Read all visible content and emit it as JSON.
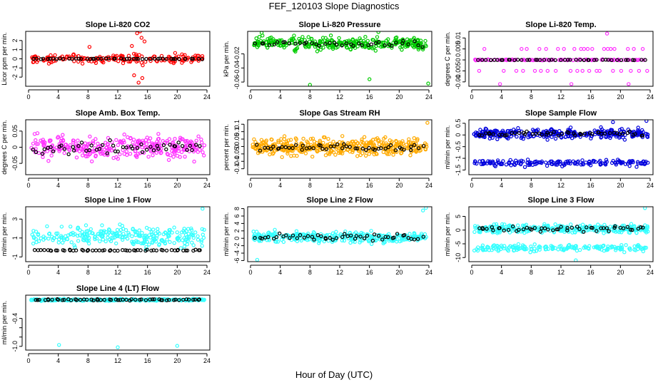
{
  "figure": {
    "title": "FEF_120103  Slope Diagnostics",
    "xlabel": "Hour of Day (UTC)",
    "colors": {
      "primary_marker": "#000000"
    }
  },
  "chart_data": [
    {
      "type": "scatter",
      "title": "Slope Li-820 CO2",
      "ylabel": "Licor ppm per min.",
      "xlim": [
        0,
        24
      ],
      "xticks": [
        0,
        4,
        8,
        12,
        16,
        20,
        24
      ],
      "ylim": [
        -3,
        3
      ],
      "yticks": [
        -2,
        -1,
        0,
        1,
        2
      ],
      "color": "#ff0000",
      "bands": [
        {
          "center": 0,
          "spread": 0.8,
          "n": 180
        }
      ],
      "black_band": {
        "center": 0,
        "spread": 0.08,
        "n": 50
      },
      "outliers": [
        [
          14.6,
          2.8
        ],
        [
          15.0,
          3.0
        ],
        [
          15.2,
          2.3
        ],
        [
          14.8,
          -2.6
        ],
        [
          15.3,
          -2.1
        ],
        [
          14.2,
          -1.8
        ],
        [
          13.9,
          1.4
        ],
        [
          15.6,
          1.9
        ],
        [
          8.2,
          1.3
        ]
      ]
    },
    {
      "type": "scatter",
      "title": "Slope Li-820 Pressure",
      "ylabel": "kPa per min.",
      "xlim": [
        0,
        24
      ],
      "xticks": [
        0,
        4,
        8,
        12,
        16,
        20,
        24
      ],
      "ylim": [
        -0.066,
        0.012
      ],
      "yticks": [
        -0.06,
        -0.04,
        -0.02
      ],
      "color": "#00cc00",
      "bands": [
        {
          "center": -0.005,
          "spread": 0.014,
          "n": 320
        }
      ],
      "black_band": {
        "center": -0.006,
        "spread": 0.006,
        "n": 40
      },
      "outliers": [
        [
          8.0,
          -0.064
        ],
        [
          16.0,
          -0.056
        ],
        [
          23.9,
          -0.062
        ],
        [
          1.5,
          0.01
        ],
        [
          17.2,
          0.011
        ]
      ]
    },
    {
      "type": "scatter",
      "title": "Slope Li-820 Temp.",
      "ylabel": "degrees C per min.",
      "xlim": [
        0,
        24
      ],
      "xticks": [
        0,
        4,
        8,
        12,
        16,
        20,
        24
      ],
      "ylim": [
        -0.012,
        0.013
      ],
      "yticks": [
        -0.01,
        -0.005,
        0.0,
        0.005,
        0.01
      ],
      "color": "#ff33ff",
      "bands": [
        {
          "center": 0,
          "spread": 0.0004,
          "n": 130
        }
      ],
      "black_band": {
        "center": 0,
        "spread": 0.0002,
        "n": 45
      },
      "level_rows": [
        {
          "y": 0.005,
          "xs": [
            1.7,
            6.7,
            7.4,
            9.1,
            10.0,
            11.6,
            12.4,
            13.8,
            14.7,
            15.1,
            15.6,
            16.2,
            17.8,
            18.3,
            18.7,
            19.2,
            21.0,
            21.8,
            23.0
          ]
        },
        {
          "y": -0.005,
          "xs": [
            1.0,
            4.3,
            6.0,
            6.9,
            8.5,
            9.3,
            10.2,
            11.3,
            13.3,
            14.2,
            14.9,
            15.8,
            16.8,
            17.2,
            19.0,
            20.1,
            21.4,
            22.5,
            23.6
          ]
        },
        {
          "y": 0.012,
          "xs": [
            18.2
          ]
        },
        {
          "y": -0.011,
          "xs": [
            3.8,
            13.4,
            21.1
          ]
        }
      ],
      "outliers": []
    },
    {
      "type": "scatter",
      "title": "Slope Amb. Box Temp.",
      "ylabel": "degrees C per min.",
      "xlim": [
        0,
        24
      ],
      "xticks": [
        0,
        4,
        8,
        12,
        16,
        20,
        24
      ],
      "ylim": [
        -0.085,
        0.085
      ],
      "yticks": [
        -0.05,
        0.0,
        0.05
      ],
      "color": "#ff33ff",
      "bands": [
        {
          "center": 0,
          "spread": 0.06,
          "n": 320
        }
      ],
      "black_band": {
        "center": 0,
        "spread": 0.03,
        "n": 50
      },
      "outliers": []
    },
    {
      "type": "scatter",
      "title": "Slope Gas Stream RH",
      "ylabel": "percent per min.",
      "xlim": [
        0,
        24
      ],
      "xticks": [
        0,
        4,
        8,
        12,
        16,
        20,
        24
      ],
      "ylim": [
        -0.19,
        0.18
      ],
      "yticks": [
        -0.15,
        -0.1,
        -0.05,
        0.0,
        0.05,
        0.1,
        0.15
      ],
      "color": "#ffaa00",
      "bands": [
        {
          "center": 0,
          "spread": 0.09,
          "n": 420
        }
      ],
      "black_band": {
        "center": -0.01,
        "spread": 0.04,
        "n": 50
      },
      "outliers": [
        [
          23.8,
          0.16
        ]
      ]
    },
    {
      "type": "scatter",
      "title": "Slope Sample Flow",
      "ylabel": "ml/min per min.",
      "xlim": [
        0,
        24
      ],
      "xticks": [
        0,
        4,
        8,
        12,
        16,
        20,
        24
      ],
      "ylim": [
        -1.7,
        0.65
      ],
      "yticks": [
        -1.5,
        -1.0,
        -0.5,
        0.0,
        0.5
      ],
      "color": "#0000dd",
      "bands": [
        {
          "center": 0.05,
          "spread": 0.35,
          "n": 300
        },
        {
          "center": -1.2,
          "spread": 0.22,
          "n": 170
        }
      ],
      "black_band": {
        "center": 0.05,
        "spread": 0.15,
        "n": 50
      },
      "outliers": [
        [
          23.5,
          0.6
        ],
        [
          19.0,
          0.55
        ]
      ]
    },
    {
      "type": "scatter",
      "title": "Slope Line 1 Flow",
      "ylabel": "ml/min per min.",
      "xlim": [
        0,
        24
      ],
      "xticks": [
        0,
        4,
        8,
        12,
        16,
        20,
        24
      ],
      "ylim": [
        -1.5,
        4.3
      ],
      "yticks": [
        -1,
        1,
        3
      ],
      "color": "#33ffff",
      "bands": [
        {
          "center": 1.2,
          "spread": 1.7,
          "n": 260
        }
      ],
      "black_band": {
        "center": -0.3,
        "spread": 0.1,
        "n": 55
      },
      "outliers": [
        [
          23.4,
          4.1
        ]
      ]
    },
    {
      "type": "scatter",
      "title": "Slope Line 2 Flow",
      "ylabel": "ml/min per min.",
      "xlim": [
        0,
        24
      ],
      "xticks": [
        0,
        4,
        8,
        12,
        16,
        20,
        24
      ],
      "ylim": [
        -6.3,
        8.5
      ],
      "yticks": [
        -6,
        -4,
        -2,
        0,
        2,
        4,
        6,
        8
      ],
      "color": "#33ffff",
      "bands": [
        {
          "center": 0.3,
          "spread": 2.3,
          "n": 330
        }
      ],
      "black_band": {
        "center": 0.3,
        "spread": 1.6,
        "n": 50
      },
      "outliers": [
        [
          23.6,
          8.2
        ],
        [
          23.2,
          7.5
        ],
        [
          0.9,
          -5.8
        ]
      ]
    },
    {
      "type": "scatter",
      "title": "Slope Line 3 Flow",
      "ylabel": "ml/min per min.",
      "xlim": [
        0,
        24
      ],
      "xticks": [
        0,
        4,
        8,
        12,
        16,
        20,
        24
      ],
      "ylim": [
        -11.5,
        8.5
      ],
      "yticks": [
        -10,
        -5,
        0,
        5
      ],
      "color": "#33ffff",
      "bands": [
        {
          "center": 0.5,
          "spread": 2.6,
          "n": 300
        },
        {
          "center": -6.5,
          "spread": 2.0,
          "n": 180
        }
      ],
      "black_band": {
        "center": 0.5,
        "spread": 1.8,
        "n": 50
      },
      "outliers": [
        [
          23.3,
          8.0
        ],
        [
          14.0,
          -11.0
        ]
      ]
    },
    {
      "type": "scatter",
      "title": "Slope Line 4 (LT) Flow",
      "ylabel": "ml/min per min.",
      "xlim": [
        0,
        24
      ],
      "xticks": [
        0,
        4,
        8,
        12,
        16,
        20,
        24
      ],
      "ylim": [
        -1.08,
        0.1
      ],
      "yticks": [
        -1.0,
        -0.8,
        -0.6,
        -0.4
      ],
      "ytick_labels": [
        "-1.0",
        "",
        "",
        "-0.4"
      ],
      "color": "#33ffff",
      "bands": [
        {
          "center": 0.0,
          "spread": 0.03,
          "n": 330
        }
      ],
      "black_band": {
        "center": 0.0,
        "spread": 0.025,
        "n": 55
      },
      "outliers": [
        [
          4.1,
          -0.97
        ],
        [
          12.0,
          -1.02
        ],
        [
          20.0,
          -0.99
        ]
      ]
    }
  ]
}
